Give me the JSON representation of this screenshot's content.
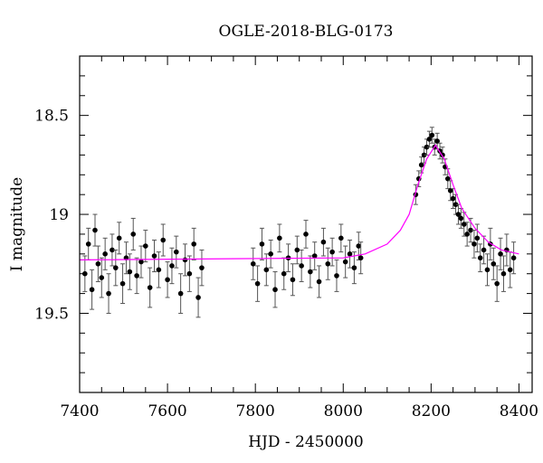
{
  "chart_data": {
    "type": "scatter",
    "title": "OGLE-2018-BLG-0173",
    "xlabel": "HJD - 2450000",
    "ylabel": "I magnitude",
    "xlim": [
      7400,
      8430
    ],
    "ylim": [
      18.2,
      19.9
    ],
    "y_inverted": true,
    "xticks": [
      "7400",
      "7600",
      "7800",
      "8000",
      "8200",
      "8400"
    ],
    "xtick_values": [
      7400,
      7600,
      7800,
      8000,
      8200,
      8400
    ],
    "yticks": [
      "18.5",
      "19",
      "19.5"
    ],
    "ytick_values": [
      18.5,
      19.0,
      19.5
    ],
    "grid": false,
    "colors": {
      "points": "#000000",
      "errorbars": "#555555",
      "model": "#ff00ff"
    },
    "series": [
      {
        "name": "data",
        "points": [
          [
            7412,
            19.3,
            0.09
          ],
          [
            7420,
            19.15,
            0.08
          ],
          [
            7428,
            19.38,
            0.1
          ],
          [
            7435,
            19.08,
            0.08
          ],
          [
            7442,
            19.25,
            0.09
          ],
          [
            7450,
            19.32,
            0.1
          ],
          [
            7458,
            19.2,
            0.08
          ],
          [
            7466,
            19.4,
            0.1
          ],
          [
            7474,
            19.18,
            0.08
          ],
          [
            7482,
            19.27,
            0.09
          ],
          [
            7490,
            19.12,
            0.08
          ],
          [
            7498,
            19.35,
            0.1
          ],
          [
            7506,
            19.22,
            0.08
          ],
          [
            7514,
            19.29,
            0.09
          ],
          [
            7522,
            19.1,
            0.08
          ],
          [
            7530,
            19.31,
            0.09
          ],
          [
            7540,
            19.24,
            0.08
          ],
          [
            7550,
            19.16,
            0.08
          ],
          [
            7560,
            19.37,
            0.1
          ],
          [
            7570,
            19.21,
            0.08
          ],
          [
            7580,
            19.28,
            0.09
          ],
          [
            7590,
            19.13,
            0.08
          ],
          [
            7600,
            19.33,
            0.09
          ],
          [
            7610,
            19.26,
            0.09
          ],
          [
            7620,
            19.19,
            0.08
          ],
          [
            7630,
            19.4,
            0.1
          ],
          [
            7640,
            19.23,
            0.08
          ],
          [
            7650,
            19.3,
            0.09
          ],
          [
            7660,
            19.15,
            0.08
          ],
          [
            7670,
            19.42,
            0.1
          ],
          [
            7678,
            19.27,
            0.09
          ],
          [
            7795,
            19.25,
            0.08
          ],
          [
            7805,
            19.35,
            0.09
          ],
          [
            7815,
            19.15,
            0.08
          ],
          [
            7825,
            19.28,
            0.08
          ],
          [
            7835,
            19.2,
            0.07
          ],
          [
            7845,
            19.38,
            0.09
          ],
          [
            7855,
            19.12,
            0.07
          ],
          [
            7865,
            19.3,
            0.08
          ],
          [
            7875,
            19.22,
            0.07
          ],
          [
            7885,
            19.33,
            0.08
          ],
          [
            7895,
            19.18,
            0.07
          ],
          [
            7905,
            19.26,
            0.08
          ],
          [
            7915,
            19.1,
            0.07
          ],
          [
            7925,
            19.29,
            0.08
          ],
          [
            7935,
            19.21,
            0.07
          ],
          [
            7945,
            19.34,
            0.08
          ],
          [
            7955,
            19.14,
            0.07
          ],
          [
            7965,
            19.25,
            0.08
          ],
          [
            7975,
            19.19,
            0.07
          ],
          [
            7985,
            19.31,
            0.08
          ],
          [
            7995,
            19.12,
            0.07
          ],
          [
            8005,
            19.24,
            0.08
          ],
          [
            8015,
            19.2,
            0.07
          ],
          [
            8025,
            19.27,
            0.08
          ],
          [
            8035,
            19.16,
            0.07
          ],
          [
            8040,
            19.22,
            0.08
          ],
          [
            8165,
            18.9,
            0.05
          ],
          [
            8172,
            18.82,
            0.04
          ],
          [
            8178,
            18.75,
            0.04
          ],
          [
            8184,
            18.7,
            0.04
          ],
          [
            8190,
            18.66,
            0.04
          ],
          [
            8196,
            18.62,
            0.04
          ],
          [
            8202,
            18.6,
            0.04
          ],
          [
            8208,
            18.66,
            0.04
          ],
          [
            8214,
            18.63,
            0.04
          ],
          [
            8220,
            18.68,
            0.04
          ],
          [
            8226,
            18.7,
            0.04
          ],
          [
            8232,
            18.76,
            0.04
          ],
          [
            8238,
            18.82,
            0.05
          ],
          [
            8244,
            18.88,
            0.05
          ],
          [
            8250,
            18.92,
            0.05
          ],
          [
            8256,
            18.95,
            0.05
          ],
          [
            8262,
            19.0,
            0.05
          ],
          [
            8268,
            19.02,
            0.05
          ],
          [
            8275,
            19.05,
            0.06
          ],
          [
            8282,
            19.1,
            0.06
          ],
          [
            8290,
            19.08,
            0.06
          ],
          [
            8298,
            19.15,
            0.07
          ],
          [
            8305,
            19.12,
            0.07
          ],
          [
            8312,
            19.22,
            0.07
          ],
          [
            8320,
            19.18,
            0.07
          ],
          [
            8328,
            19.28,
            0.08
          ],
          [
            8335,
            19.15,
            0.08
          ],
          [
            8342,
            19.25,
            0.08
          ],
          [
            8350,
            19.35,
            0.09
          ],
          [
            8358,
            19.2,
            0.08
          ],
          [
            8365,
            19.3,
            0.09
          ],
          [
            8372,
            19.18,
            0.08
          ],
          [
            8380,
            19.28,
            0.09
          ],
          [
            8388,
            19.22,
            0.08
          ]
        ]
      },
      {
        "name": "model",
        "points": [
          [
            7400,
            19.23
          ],
          [
            8000,
            19.22
          ],
          [
            8050,
            19.2
          ],
          [
            8100,
            19.15
          ],
          [
            8130,
            19.08
          ],
          [
            8150,
            19.0
          ],
          [
            8170,
            18.85
          ],
          [
            8190,
            18.72
          ],
          [
            8210,
            18.65
          ],
          [
            8230,
            18.72
          ],
          [
            8250,
            18.85
          ],
          [
            8270,
            18.97
          ],
          [
            8300,
            19.07
          ],
          [
            8330,
            19.14
          ],
          [
            8360,
            19.18
          ],
          [
            8400,
            19.2
          ]
        ]
      }
    ]
  }
}
